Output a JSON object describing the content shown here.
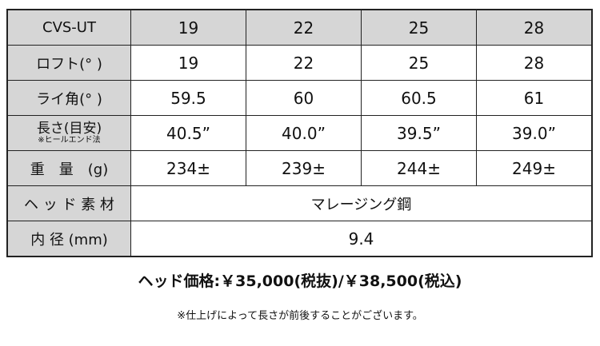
{
  "table": {
    "header": {
      "label": "CVS-UT",
      "values": [
        "19",
        "22",
        "25",
        "28"
      ]
    },
    "rows": [
      {
        "label": "ロフト(° )",
        "values": [
          "19",
          "22",
          "25",
          "28"
        ]
      },
      {
        "label": "ライ角(° )",
        "values": [
          "59.5",
          "60",
          "60.5",
          "61"
        ]
      },
      {
        "label": "長さ(目安)",
        "sublabel": "※ヒールエンド法",
        "values": [
          "40.5”",
          "40.0”",
          "39.5”",
          "39.0”"
        ]
      },
      {
        "label": "重　量　(g)",
        "values": [
          "234±",
          "239±",
          "244±",
          "249±"
        ]
      }
    ],
    "material": {
      "label": "ヘ ッ ド 素 材",
      "value": "マレージング鋼"
    },
    "bore": {
      "label": "内 径 (mm)",
      "value": "9.4"
    }
  },
  "price": "ヘッド価格:￥35,000(税抜)/￥38,500(税込)",
  "note": "※仕上げによって長さが前後することがございます。"
}
